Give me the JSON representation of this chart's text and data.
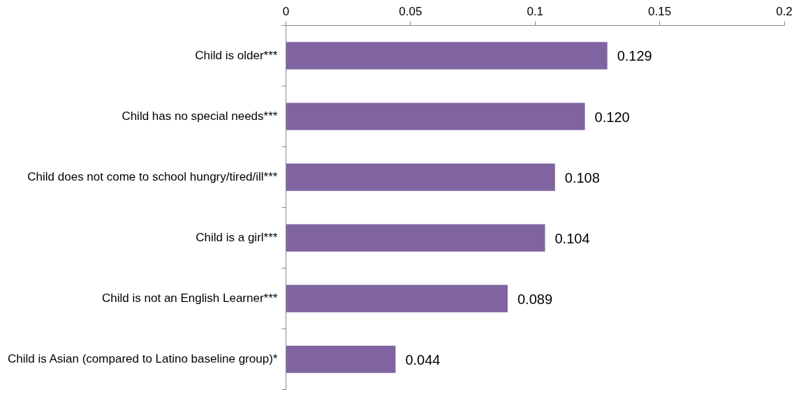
{
  "chart_data": {
    "type": "bar",
    "orientation": "horizontal",
    "categories": [
      "Child is older***",
      "Child has no special needs***",
      "Child does not come to school hungry/tired/ill***",
      "Child is a girl***",
      "Child is not an English Learner***",
      "Child is Asian (compared to Latino baseline group)*"
    ],
    "values": [
      0.129,
      0.12,
      0.108,
      0.104,
      0.089,
      0.044
    ],
    "value_labels": [
      "0.129",
      "0.120",
      "0.108",
      "0.104",
      "0.089",
      "0.044"
    ],
    "color": "#8064a2",
    "xlim": [
      0,
      0.2
    ],
    "xticks": [
      0,
      0.05,
      0.1,
      0.15,
      0.2
    ],
    "legend": false
  }
}
